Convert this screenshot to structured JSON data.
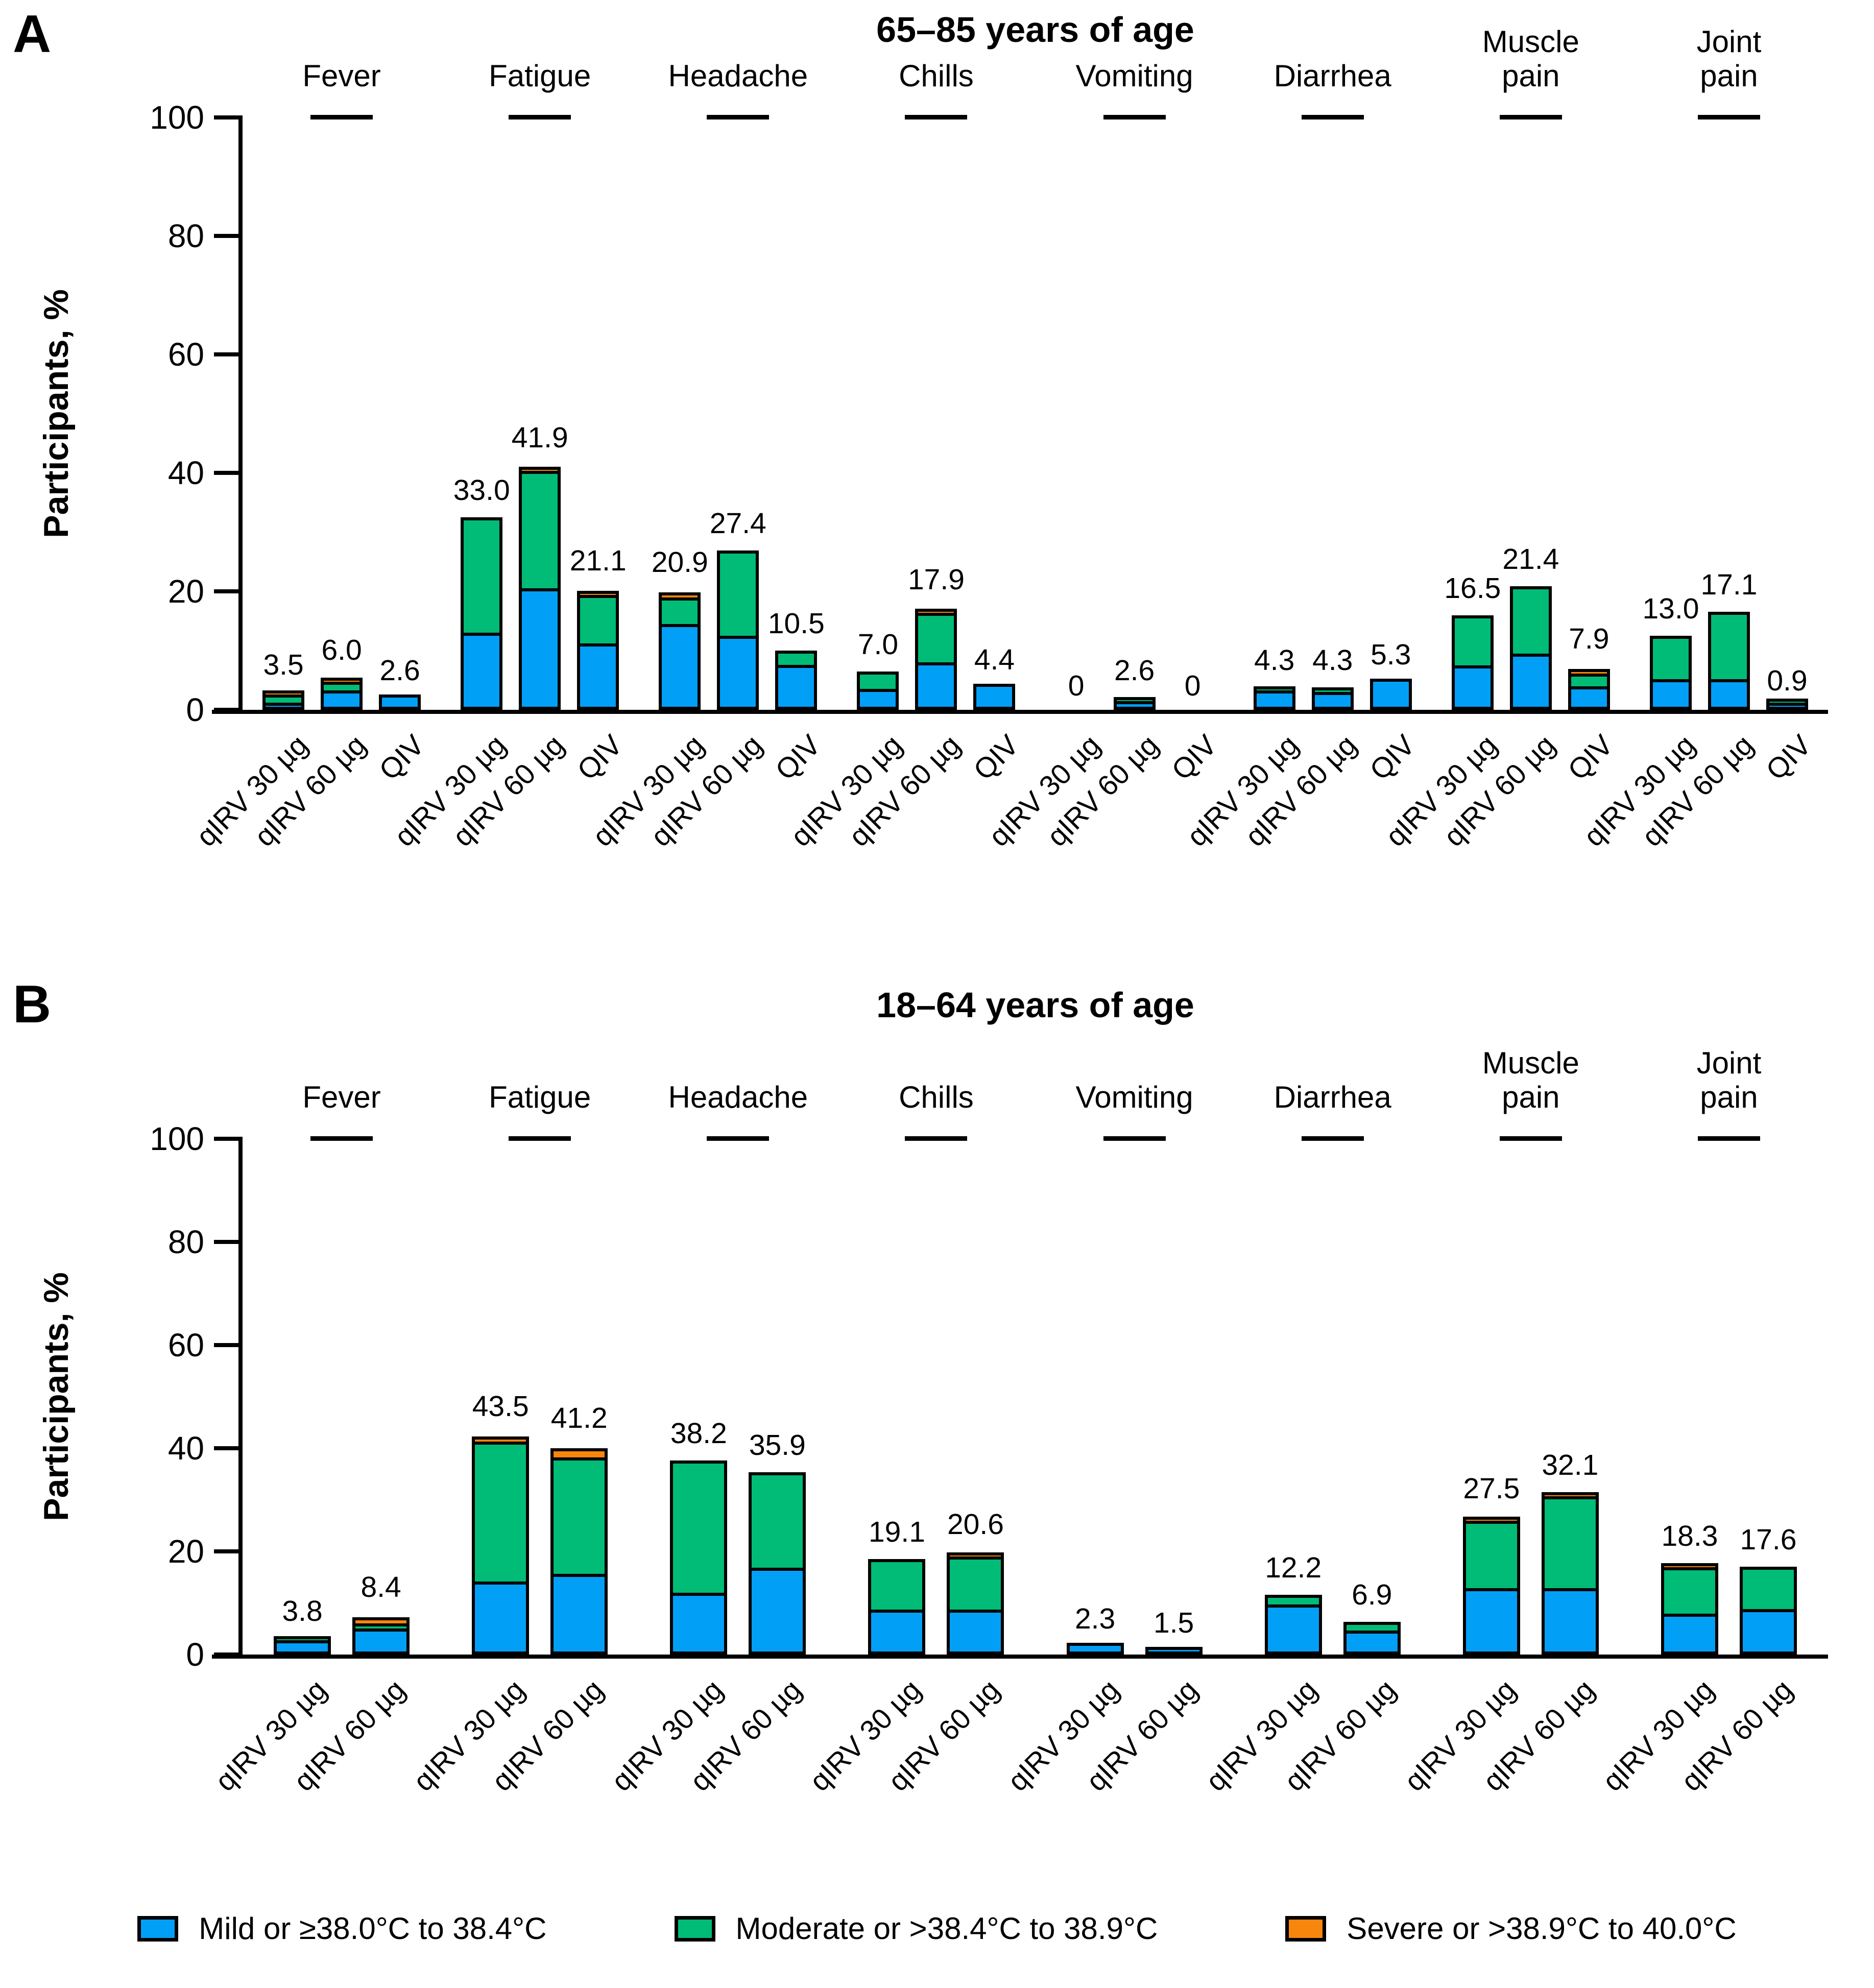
{
  "colors": {
    "mild": "#029ff7",
    "moderate": "#00bc77",
    "severe": "#f8860d",
    "axis": "#000000",
    "background": "#ffffff"
  },
  "y_axis": {
    "title": "Participants, %",
    "ticks": [
      0,
      20,
      40,
      60,
      80,
      100
    ],
    "ylim": [
      0,
      100
    ]
  },
  "legend": [
    {
      "name": "mild",
      "label": "Mild or ≥38.0°C to 38.4°C",
      "color": "#029ff7"
    },
    {
      "name": "moderate",
      "label": "Moderate or >38.4°C to 38.9°C",
      "color": "#00bc77"
    },
    {
      "name": "severe",
      "label": "Severe or >38.9°C to 40.0°C",
      "color": "#f8860d"
    }
  ],
  "chart_data": [
    {
      "type": "bar",
      "stacked": true,
      "panel_id": "A",
      "panel_letter": "A",
      "title": "65–85 years of age",
      "ylabel": "Participants, %",
      "ylim": [
        0,
        100
      ],
      "arms": [
        "qIRV 30 µg",
        "qIRV 60 µg",
        "QIV"
      ],
      "categories": [
        "Fever",
        "Fatigue",
        "Headache",
        "Chills",
        "Vomiting",
        "Diarrhea",
        "Muscle\npain",
        "Joint\npain"
      ],
      "groups": [
        {
          "category": "Fever",
          "bars": [
            {
              "arm": "qIRV 30 µg",
              "total": 3.5,
              "label": "3.5",
              "mild": 0.6,
              "moderate": 1.9,
              "severe": 1.0
            },
            {
              "arm": "qIRV 60 µg",
              "total": 6.0,
              "label": "6.0",
              "mild": 3.3,
              "moderate": 2.0,
              "severe": 0.7
            },
            {
              "arm": "QIV",
              "total": 2.6,
              "label": "2.6",
              "mild": 2.6,
              "moderate": 0,
              "severe": 0
            }
          ]
        },
        {
          "category": "Fatigue",
          "bars": [
            {
              "arm": "qIRV 30 µg",
              "total": 33.0,
              "label": "33.0",
              "mild": 13.0,
              "moderate": 20.0,
              "severe": 0
            },
            {
              "arm": "qIRV 60 µg",
              "total": 41.9,
              "label": "41.9",
              "mild": 20.5,
              "moderate": 20.4,
              "severe": 1.0
            },
            {
              "arm": "QIV",
              "total": 21.1,
              "label": "21.1",
              "mild": 11.2,
              "moderate": 8.7,
              "severe": 1.2
            }
          ]
        },
        {
          "category": "Headache",
          "bars": [
            {
              "arm": "qIRV 30 µg",
              "total": 20.9,
              "label": "20.9",
              "mild": 14.5,
              "moderate": 5.0,
              "severe": 1.4
            },
            {
              "arm": "qIRV 60 µg",
              "total": 27.4,
              "label": "27.4",
              "mild": 12.5,
              "moderate": 14.9,
              "severe": 0
            },
            {
              "arm": "QIV",
              "total": 10.5,
              "label": "10.5",
              "mild": 7.6,
              "moderate": 2.9,
              "severe": 0
            }
          ]
        },
        {
          "category": "Chills",
          "bars": [
            {
              "arm": "qIRV 30 µg",
              "total": 7.0,
              "label": "7.0",
              "mild": 3.5,
              "moderate": 3.5,
              "severe": 0
            },
            {
              "arm": "qIRV 60 µg",
              "total": 17.9,
              "label": "17.9",
              "mild": 8.0,
              "moderate": 8.9,
              "severe": 1.0
            },
            {
              "arm": "QIV",
              "total": 4.4,
              "label": "4.4",
              "mild": 4.4,
              "moderate": 0,
              "severe": 0
            }
          ]
        },
        {
          "category": "Vomiting",
          "bars": [
            {
              "arm": "qIRV 30 µg",
              "total": 0,
              "label": "0",
              "mild": 0,
              "moderate": 0,
              "severe": 0
            },
            {
              "arm": "qIRV 60 µg",
              "total": 2.6,
              "label": "2.6",
              "mild": 1.5,
              "moderate": 1.1,
              "severe": 0
            },
            {
              "arm": "QIV",
              "total": 0,
              "label": "0",
              "mild": 0,
              "moderate": 0,
              "severe": 0
            }
          ]
        },
        {
          "category": "Diarrhea",
          "bars": [
            {
              "arm": "qIRV 30 µg",
              "total": 4.3,
              "label": "4.3",
              "mild": 3.3,
              "moderate": 1.0,
              "severe": 0
            },
            {
              "arm": "qIRV 60 µg",
              "total": 4.3,
              "label": "4.3",
              "mild": 3.0,
              "moderate": 1.3,
              "severe": 0
            },
            {
              "arm": "QIV",
              "total": 5.3,
              "label": "5.3",
              "mild": 5.3,
              "moderate": 0,
              "severe": 0
            }
          ]
        },
        {
          "category": "Muscle\npain",
          "bars": [
            {
              "arm": "qIRV 30 µg",
              "total": 16.5,
              "label": "16.5",
              "mild": 7.5,
              "moderate": 9.0,
              "severe": 0
            },
            {
              "arm": "qIRV 60 µg",
              "total": 21.4,
              "label": "21.4",
              "mild": 9.5,
              "moderate": 11.9,
              "severe": 0
            },
            {
              "arm": "QIV",
              "total": 7.9,
              "label": "7.9",
              "mild": 4.0,
              "moderate": 2.6,
              "severe": 1.3
            }
          ]
        },
        {
          "category": "Joint\npain",
          "bars": [
            {
              "arm": "qIRV 30 µg",
              "total": 13.0,
              "label": "13.0",
              "mild": 5.2,
              "moderate": 7.8,
              "severe": 0
            },
            {
              "arm": "qIRV 60 µg",
              "total": 17.1,
              "label": "17.1",
              "mild": 5.2,
              "moderate": 11.9,
              "severe": 0
            },
            {
              "arm": "QIV",
              "total": 0.9,
              "label": "0.9",
              "mild": 0.3,
              "moderate": 0.6,
              "severe": 0
            }
          ]
        }
      ]
    },
    {
      "type": "bar",
      "stacked": true,
      "panel_id": "B",
      "panel_letter": "B",
      "title": "18–64 years of age",
      "ylabel": "Participants, %",
      "ylim": [
        0,
        100
      ],
      "arms": [
        "qIRV 30 µg",
        "qIRV 60 µg"
      ],
      "categories": [
        "Fever",
        "Fatigue",
        "Headache",
        "Chills",
        "Vomiting",
        "Diarrhea",
        "Muscle\npain",
        "Joint\npain"
      ],
      "groups": [
        {
          "category": "Fever",
          "bars": [
            {
              "arm": "qIRV 30 µg",
              "total": 3.8,
              "label": "3.8",
              "mild": 2.8,
              "moderate": 1.0,
              "severe": 0
            },
            {
              "arm": "qIRV 60 µg",
              "total": 8.4,
              "label": "8.4",
              "mild": 5.1,
              "moderate": 1.5,
              "severe": 1.8
            }
          ]
        },
        {
          "category": "Fatigue",
          "bars": [
            {
              "arm": "qIRV 30 µg",
              "total": 43.5,
              "label": "43.5",
              "mild": 14.2,
              "moderate": 27.7,
              "severe": 1.6
            },
            {
              "arm": "qIRV 60 µg",
              "total": 41.2,
              "label": "41.2",
              "mild": 15.6,
              "moderate": 23.2,
              "severe": 2.4
            }
          ]
        },
        {
          "category": "Headache",
          "bars": [
            {
              "arm": "qIRV 30 µg",
              "total": 38.2,
              "label": "38.2",
              "mild": 12.0,
              "moderate": 26.2,
              "severe": 0
            },
            {
              "arm": "qIRV 60 µg",
              "total": 35.9,
              "label": "35.9",
              "mild": 16.8,
              "moderate": 19.1,
              "severe": 0
            }
          ]
        },
        {
          "category": "Chills",
          "bars": [
            {
              "arm": "qIRV 30 µg",
              "total": 19.1,
              "label": "19.1",
              "mild": 8.7,
              "moderate": 10.4,
              "severe": 0
            },
            {
              "arm": "qIRV 60 µg",
              "total": 20.6,
              "label": "20.6",
              "mild": 8.7,
              "moderate": 10.9,
              "severe": 1.0
            }
          ]
        },
        {
          "category": "Vomiting",
          "bars": [
            {
              "arm": "qIRV 30 µg",
              "total": 2.3,
              "label": "2.3",
              "mild": 2.3,
              "moderate": 0,
              "severe": 0
            },
            {
              "arm": "qIRV 60 µg",
              "total": 1.5,
              "label": "1.5",
              "mild": 1.5,
              "moderate": 0,
              "severe": 0
            }
          ]
        },
        {
          "category": "Diarrhea",
          "bars": [
            {
              "arm": "qIRV 30 µg",
              "total": 12.2,
              "label": "12.2",
              "mild": 9.7,
              "moderate": 2.5,
              "severe": 0
            },
            {
              "arm": "qIRV 60 µg",
              "total": 6.9,
              "label": "6.9",
              "mild": 4.7,
              "moderate": 2.2,
              "severe": 0
            }
          ]
        },
        {
          "category": "Muscle\npain",
          "bars": [
            {
              "arm": "qIRV 30 µg",
              "total": 27.5,
              "label": "27.5",
              "mild": 12.9,
              "moderate": 13.6,
              "severe": 1.0
            },
            {
              "arm": "qIRV 60 µg",
              "total": 32.1,
              "label": "32.1",
              "mild": 12.9,
              "moderate": 18.4,
              "severe": 0.8
            }
          ]
        },
        {
          "category": "Joint\npain",
          "bars": [
            {
              "arm": "qIRV 30 µg",
              "total": 18.3,
              "label": "18.3",
              "mild": 7.9,
              "moderate": 9.6,
              "severe": 0.8
            },
            {
              "arm": "qIRV 60 µg",
              "total": 17.6,
              "label": "17.6",
              "mild": 8.8,
              "moderate": 8.8,
              "severe": 0
            }
          ]
        }
      ]
    }
  ]
}
